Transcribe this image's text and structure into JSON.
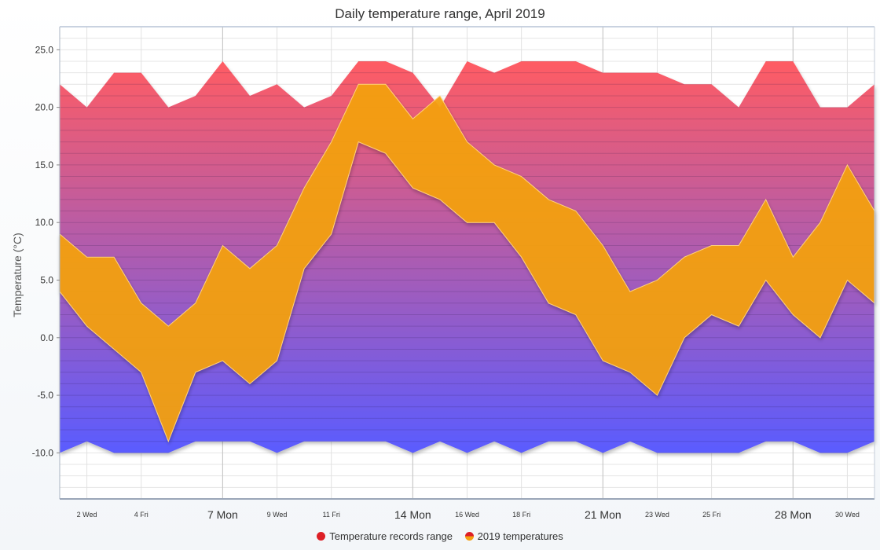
{
  "chart_data": {
    "type": "area",
    "title": "Daily temperature range, April 2019",
    "xlabel": "",
    "ylabel": "Temperature (°C)",
    "ylim": [
      -14,
      27
    ],
    "grid": true,
    "legend_position": "bottom",
    "days": [
      1,
      2,
      3,
      4,
      5,
      6,
      7,
      8,
      9,
      10,
      11,
      12,
      13,
      14,
      15,
      16,
      17,
      18,
      19,
      20,
      21,
      22,
      23,
      24,
      25,
      26,
      27,
      28,
      29,
      30,
      31
    ],
    "x_tick_labels": [
      {
        "day": 2,
        "label": "2 Wed",
        "major": false
      },
      {
        "day": 4,
        "label": "4 Fri",
        "major": false
      },
      {
        "day": 7,
        "label": "7 Mon",
        "major": true
      },
      {
        "day": 9,
        "label": "9 Wed",
        "major": false
      },
      {
        "day": 11,
        "label": "11 Fri",
        "major": false
      },
      {
        "day": 14,
        "label": "14 Mon",
        "major": true
      },
      {
        "day": 16,
        "label": "16 Wed",
        "major": false
      },
      {
        "day": 18,
        "label": "18 Fri",
        "major": false
      },
      {
        "day": 21,
        "label": "21 Mon",
        "major": true
      },
      {
        "day": 23,
        "label": "23 Wed",
        "major": false
      },
      {
        "day": 25,
        "label": "25 Fri",
        "major": false
      },
      {
        "day": 28,
        "label": "28 Mon",
        "major": true
      },
      {
        "day": 30,
        "label": "30 Wed",
        "major": false
      }
    ],
    "y_ticks": [
      25,
      20,
      15,
      10,
      5,
      0,
      -5,
      -10
    ],
    "y_tick_labels": [
      "25.0",
      "20.0",
      "15.0",
      "10.0",
      "5.0",
      "0.0",
      "-5.0",
      "-10.0"
    ],
    "series": [
      {
        "name": "Temperature records range",
        "color": "#dd1f26",
        "gradient_top": "#ff5c63",
        "gradient_bottom": "#5a5bff",
        "high": [
          22,
          20,
          23,
          23,
          20,
          21,
          24,
          21,
          22,
          20,
          21,
          24,
          24,
          23,
          20,
          24,
          23,
          24,
          24,
          24,
          23,
          23,
          23,
          22,
          22,
          20,
          24,
          24,
          20,
          20,
          22
        ],
        "low": [
          -10,
          -9,
          -10,
          -10,
          -10,
          -9,
          -9,
          -9,
          -10,
          -9,
          -9,
          -9,
          -9,
          -10,
          -9,
          -10,
          -9,
          -10,
          -9,
          -9,
          -10,
          -9,
          -10,
          -10,
          -10,
          -10,
          -9,
          -9,
          -10,
          -10,
          -9
        ]
      },
      {
        "name": "2019 temperatures",
        "color": "#f5a011",
        "high": [
          9,
          7,
          7,
          3,
          1,
          3,
          8,
          6,
          8,
          13,
          17,
          22,
          22,
          19,
          21,
          17,
          15,
          14,
          12,
          11,
          8,
          4,
          5,
          7,
          8,
          8,
          12,
          7,
          10,
          15,
          11
        ],
        "low": [
          4,
          1,
          -1,
          -3,
          -9,
          -3,
          -2,
          -4,
          -2,
          6,
          9,
          17,
          16,
          13,
          12,
          10,
          10,
          7,
          3,
          2,
          -2,
          -3,
          -5,
          0,
          2,
          1,
          5,
          2,
          0,
          5,
          3
        ]
      }
    ]
  }
}
